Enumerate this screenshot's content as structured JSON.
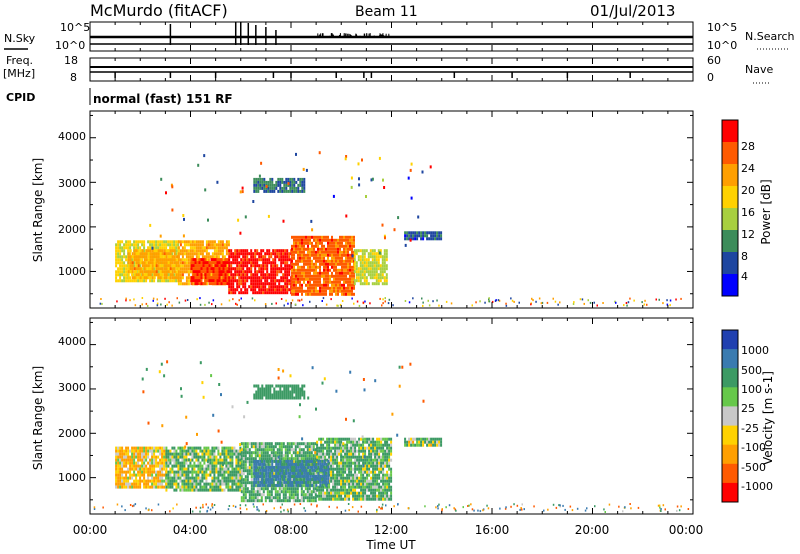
{
  "header": {
    "station": "McMurdo (fitACF)",
    "beam": "Beam 11",
    "date": "01/Jul/2013"
  },
  "sky_panel": {
    "left_label": "N.Sky",
    "right_label": "N.Search",
    "left_ticks": [
      "10^5",
      "10^0"
    ],
    "right_ticks": [
      "10^5",
      "10^0"
    ]
  },
  "freq_panel": {
    "left_label_1": "Freq.",
    "left_label_2": "[MHz]",
    "right_label": "Nave",
    "left_ticks": [
      "18",
      "8"
    ],
    "right_ticks": [
      "60",
      "0"
    ]
  },
  "cpid": {
    "label": "CPID",
    "value": "normal (fast) 151 RF"
  },
  "power_panel": {
    "ylabel": "Slant Range [km]",
    "yticks": [
      "4000",
      "3000",
      "2000",
      "1000"
    ],
    "colorbar_label": "Power [dB]",
    "colorbar_ticks": [
      "28",
      "24",
      "20",
      "16",
      "12",
      "8",
      "4"
    ],
    "colorbar_colors": [
      "#ff0000",
      "#ff5a00",
      "#ff9f00",
      "#ffd200",
      "#a8d040",
      "#3c8c5a",
      "#1e46a0",
      "#0000ff"
    ]
  },
  "velocity_panel": {
    "ylabel": "Slant Range [km]",
    "yticks": [
      "4000",
      "3000",
      "2000",
      "1000"
    ],
    "colorbar_label": "Velocity [m s-1]",
    "colorbar_ticks": [
      "1000",
      "500",
      "100",
      "25",
      "-25",
      "-100",
      "-500",
      "-1000"
    ],
    "colorbar_colors": [
      "#2040b0",
      "#3a7bb0",
      "#3c9a64",
      "#66c84a",
      "#c8c8c8",
      "#ffd200",
      "#ff9f00",
      "#ff5a00",
      "#ff0000"
    ]
  },
  "x_axis": {
    "ticks": [
      "00:00",
      "04:00",
      "08:00",
      "12:00",
      "16:00",
      "20:00",
      "00:00"
    ],
    "label": "Time UT"
  },
  "chart_data": [
    {
      "type": "heatmap",
      "title": "Power",
      "xlabel": "Time UT",
      "ylabel": "Slant Range [km]",
      "x_unit": "hours UT",
      "xlim": [
        0,
        24
      ],
      "ylim": [
        180,
        4600
      ],
      "zlabel": "Power [dB]",
      "zlim": [
        0,
        30
      ],
      "blobs": [
        {
          "t0": 1.0,
          "t1": 3.5,
          "r0": 800,
          "r1": 1700,
          "value": 16
        },
        {
          "t0": 1.5,
          "t1": 3.5,
          "r0": 850,
          "r1": 1500,
          "value": 20
        },
        {
          "t0": 3.5,
          "t1": 5.5,
          "r0": 700,
          "r1": 1700,
          "value": 20
        },
        {
          "t0": 4.0,
          "t1": 5.5,
          "r0": 750,
          "r1": 1300,
          "value": 26
        },
        {
          "t0": 5.5,
          "t1": 8.0,
          "r0": 550,
          "r1": 1500,
          "value": 28
        },
        {
          "t0": 8.0,
          "t1": 10.5,
          "r0": 500,
          "r1": 1800,
          "value": 24
        },
        {
          "t0": 10.5,
          "t1": 11.8,
          "r0": 700,
          "r1": 1500,
          "value": 14
        },
        {
          "t0": 6.5,
          "t1": 8.5,
          "r0": 2800,
          "r1": 3100,
          "value": 8
        },
        {
          "t0": 12.5,
          "t1": 14.0,
          "r0": 1700,
          "r1": 1900,
          "value": 6
        }
      ]
    },
    {
      "type": "heatmap",
      "title": "Velocity",
      "xlabel": "Time UT",
      "ylabel": "Slant Range [km]",
      "x_unit": "hours UT",
      "xlim": [
        0,
        24
      ],
      "ylim": [
        180,
        4600
      ],
      "zlabel": "Velocity [m s-1]",
      "zlim": [
        -1000,
        1000
      ],
      "blobs": [
        {
          "t0": 1.0,
          "t1": 3.0,
          "r0": 800,
          "r1": 1700,
          "value": -100
        },
        {
          "t0": 3.0,
          "t1": 6.0,
          "r0": 700,
          "r1": 1700,
          "value": 100
        },
        {
          "t0": 6.0,
          "t1": 9.0,
          "r0": 500,
          "r1": 1800,
          "value": 150
        },
        {
          "t0": 9.0,
          "t1": 12.0,
          "r0": 500,
          "r1": 1900,
          "value": 120
        },
        {
          "t0": 6.5,
          "t1": 9.5,
          "r0": 800,
          "r1": 1400,
          "value": 600
        },
        {
          "t0": 6.5,
          "t1": 8.5,
          "r0": 2800,
          "r1": 3100,
          "value": 300
        },
        {
          "t0": 12.5,
          "t1": 14.0,
          "r0": 1700,
          "r1": 1900,
          "value": 50
        }
      ]
    }
  ]
}
